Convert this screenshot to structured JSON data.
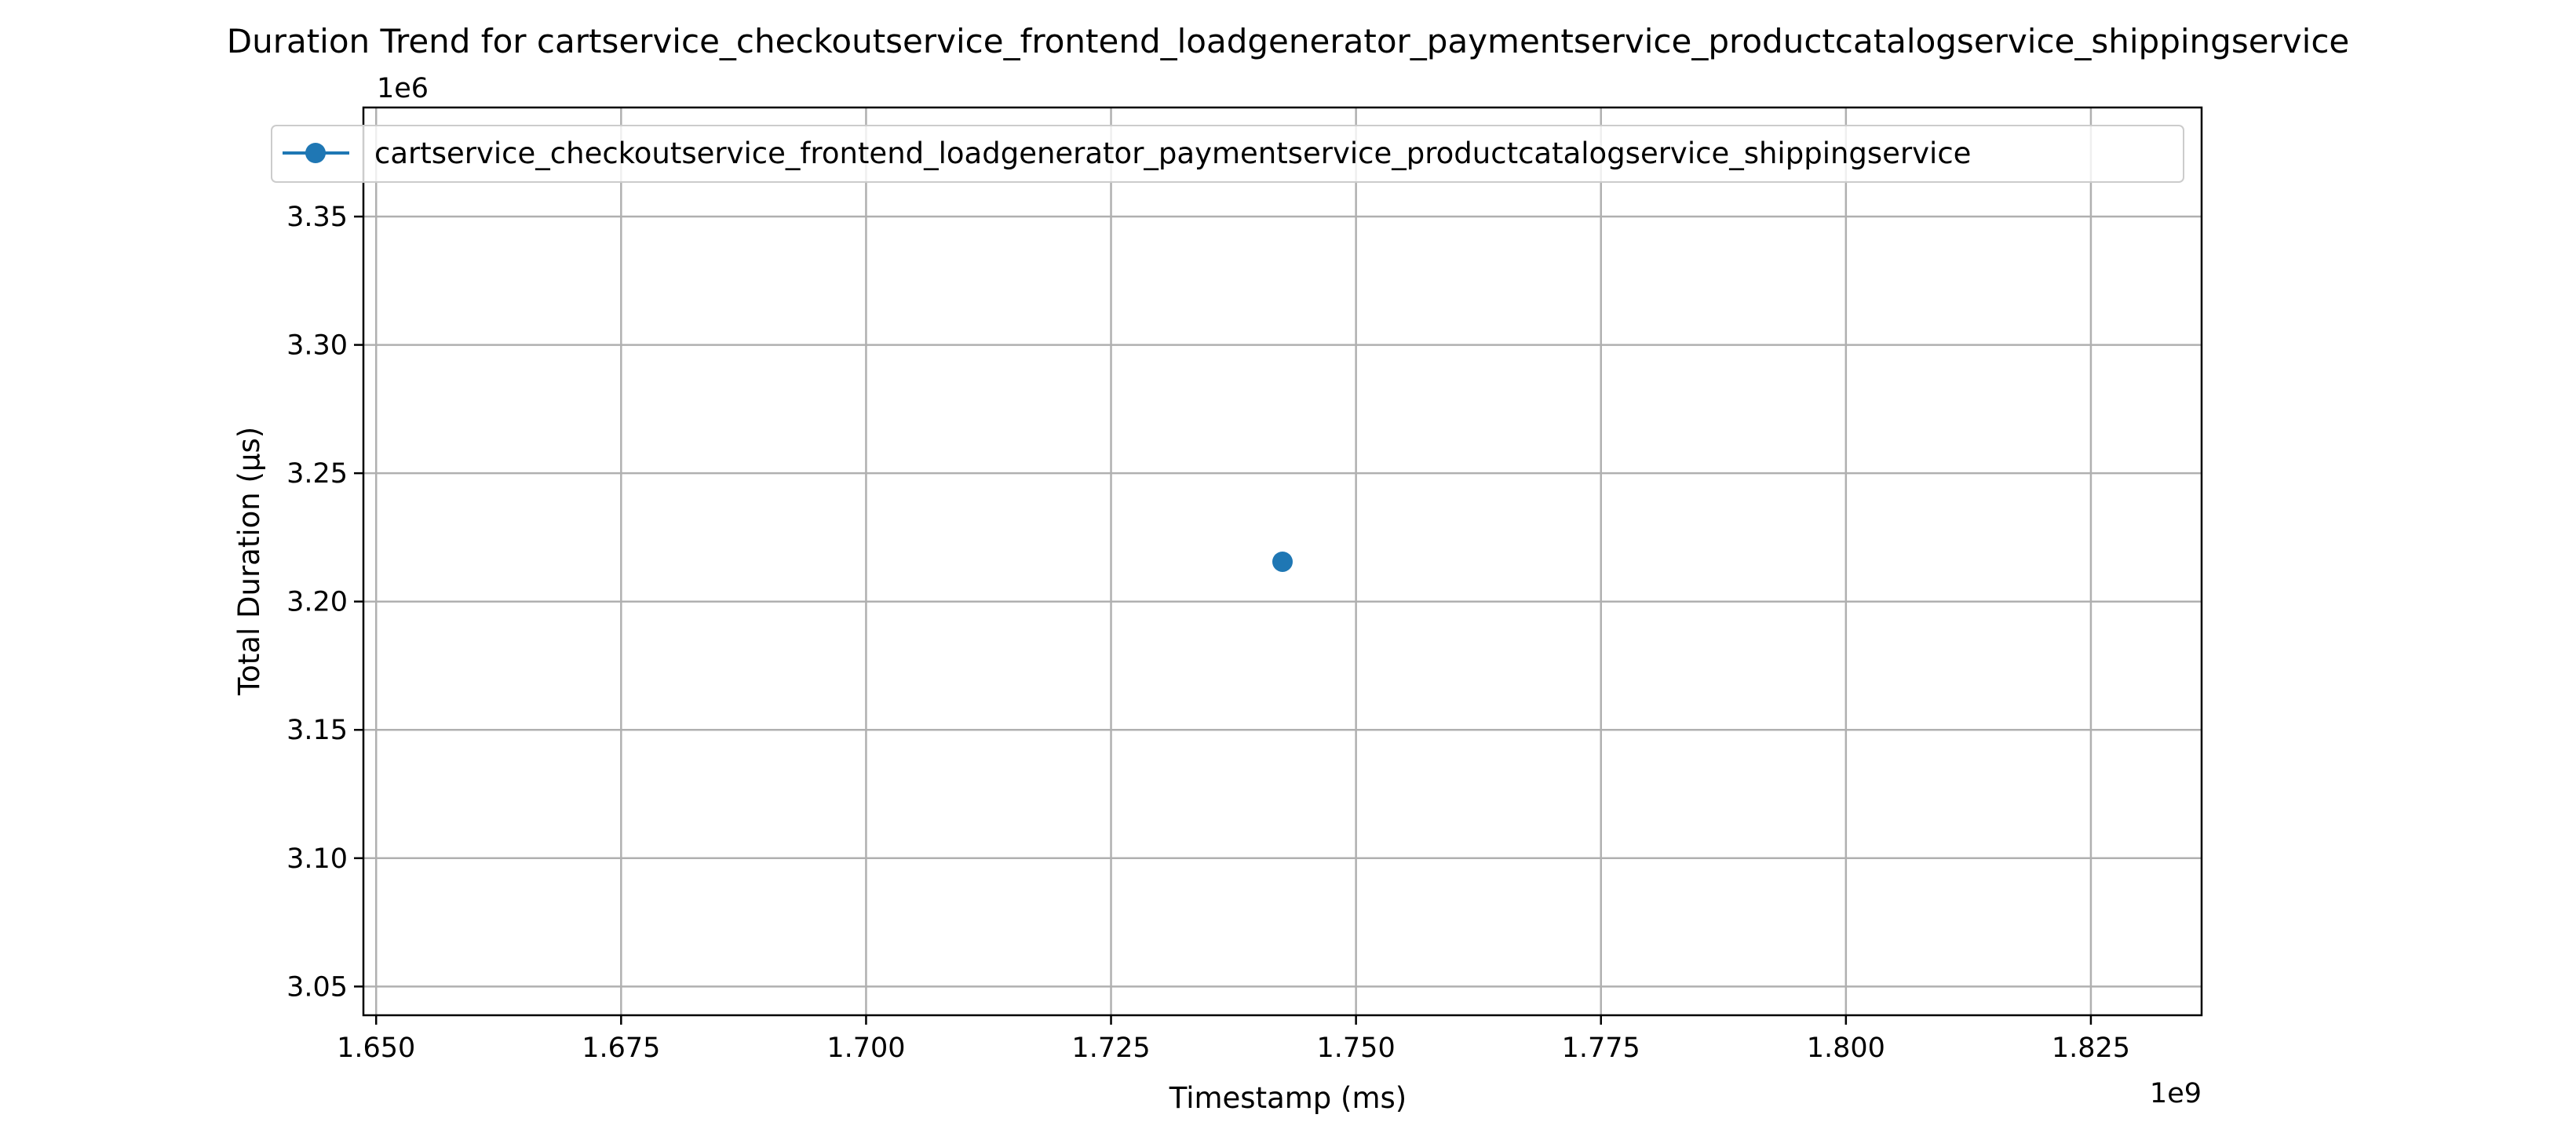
{
  "chart_data": {
    "type": "line",
    "title": "Duration Trend for cartservice_checkoutservice_frontend_loadgenerator_paymentservice_productcatalogservice_shippingservice",
    "xlabel": "Timestamp (ms)",
    "ylabel": "Total Duration (µs)",
    "x_offset_label": "1e9",
    "y_offset_label": "1e6",
    "xlim": [
      1.6487,
      1.8363
    ],
    "ylim": [
      3.0388,
      3.3925
    ],
    "x_ticks": [
      1.65,
      1.675,
      1.7,
      1.725,
      1.75,
      1.775,
      1.8,
      1.825
    ],
    "x_tick_labels": [
      "1.650",
      "1.675",
      "1.700",
      "1.725",
      "1.750",
      "1.775",
      "1.800",
      "1.825"
    ],
    "y_ticks": [
      3.05,
      3.1,
      3.15,
      3.2,
      3.25,
      3.3,
      3.35
    ],
    "y_tick_labels": [
      "3.05",
      "3.10",
      "3.15",
      "3.20",
      "3.25",
      "3.30",
      "3.35"
    ],
    "grid": true,
    "legend_position": "top-right",
    "series": [
      {
        "name": "cartservice_checkoutservice_frontend_loadgenerator_paymentservice_productcatalogservice_shippingservice",
        "color": "#1f77b4",
        "marker": "circle",
        "x": [
          1.7425
        ],
        "y": [
          3.2155
        ]
      }
    ]
  }
}
